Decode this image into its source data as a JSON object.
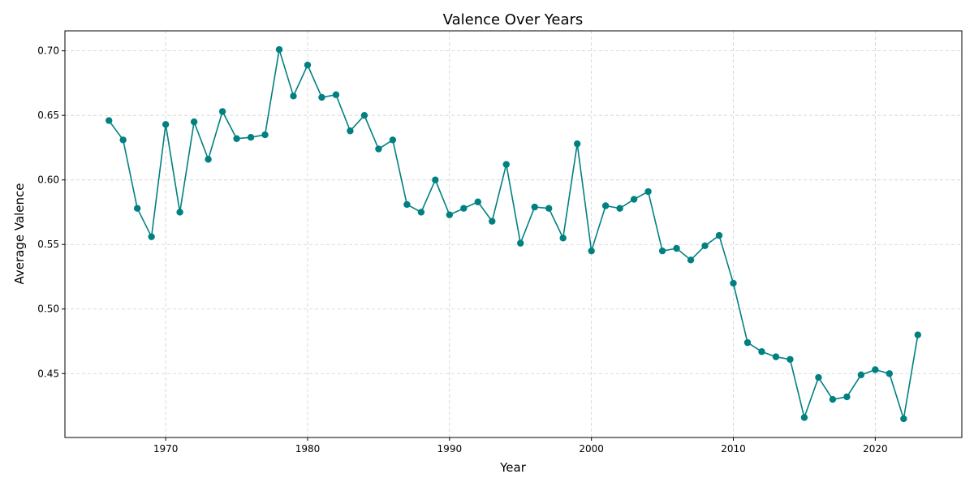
{
  "chart_data": {
    "type": "line",
    "title": "Valence Over Years",
    "xlabel": "Year",
    "ylabel": "Average Valence",
    "xlim": [
      1962.9,
      2026.1
    ],
    "ylim": [
      0.4005,
      0.7155
    ],
    "xticks": [
      1970,
      1980,
      1990,
      2000,
      2010,
      2020
    ],
    "yticks": [
      0.45,
      0.5,
      0.55,
      0.6,
      0.65,
      0.7
    ],
    "grid": true,
    "color": "#008080",
    "marker": "circle",
    "x": [
      1966,
      1967,
      1968,
      1969,
      1970,
      1971,
      1972,
      1973,
      1974,
      1975,
      1976,
      1977,
      1978,
      1979,
      1980,
      1981,
      1982,
      1983,
      1984,
      1985,
      1986,
      1987,
      1988,
      1989,
      1990,
      1991,
      1992,
      1993,
      1994,
      1995,
      1996,
      1997,
      1998,
      1999,
      2000,
      2001,
      2002,
      2003,
      2004,
      2005,
      2006,
      2007,
      2008,
      2009,
      2010,
      2011,
      2012,
      2013,
      2014,
      2015,
      2016,
      2017,
      2018,
      2019,
      2020,
      2021,
      2022,
      2023
    ],
    "y": [
      0.646,
      0.631,
      0.578,
      0.556,
      0.643,
      0.575,
      0.645,
      0.616,
      0.653,
      0.632,
      0.633,
      0.635,
      0.701,
      0.665,
      0.689,
      0.664,
      0.666,
      0.638,
      0.65,
      0.624,
      0.631,
      0.581,
      0.575,
      0.6,
      0.573,
      0.578,
      0.583,
      0.568,
      0.612,
      0.551,
      0.579,
      0.578,
      0.555,
      0.628,
      0.545,
      0.58,
      0.578,
      0.585,
      0.591,
      0.545,
      0.547,
      0.538,
      0.549,
      0.557,
      0.52,
      0.474,
      0.467,
      0.463,
      0.461,
      0.416,
      0.447,
      0.43,
      0.432,
      0.449,
      0.453,
      0.45,
      0.415,
      0.48
    ]
  }
}
